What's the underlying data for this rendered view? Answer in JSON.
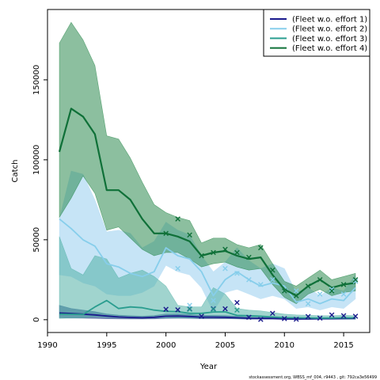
{
  "chart_data": {
    "type": "line",
    "title": "",
    "xlabel": "Year",
    "ylabel": "Catch",
    "xlim": [
      1990,
      2017.2
    ],
    "ylim": [
      -8000,
      194000
    ],
    "x_ticks": [
      1990,
      1995,
      2000,
      2005,
      2010,
      2015
    ],
    "y_ticks": [
      0,
      50000,
      100000,
      150000
    ],
    "legend_position": "top-right",
    "grid": false,
    "footnote": "stockassessment.org, WBSS_mf_004, r9443 , git: 792ca3e56499",
    "series": [
      {
        "name": "(Fleet w.o. effort 1)",
        "color": "#1a1a8c",
        "band_color": "#2a4a8a",
        "band_opacity": 0.65,
        "line_width": 1.8,
        "years": [
          1991,
          1992,
          1993,
          1994,
          1995,
          1996,
          1997,
          1998,
          1999,
          2000,
          2001,
          2002,
          2003,
          2004,
          2005,
          2006,
          2007,
          2008,
          2009,
          2010,
          2011,
          2012,
          2013,
          2014,
          2015,
          2016
        ],
        "estimate": [
          4200,
          3900,
          3500,
          3000,
          2300,
          1700,
          1400,
          1200,
          1500,
          2200,
          2300,
          2000,
          1600,
          1600,
          1500,
          1200,
          900,
          800,
          800,
          500,
          400,
          500,
          600,
          600,
          700,
          800
        ],
        "lower": [
          1200,
          1000,
          900,
          800,
          600,
          500,
          400,
          400,
          500,
          800,
          900,
          800,
          600,
          600,
          600,
          500,
          300,
          300,
          300,
          200,
          150,
          200,
          250,
          250,
          300,
          300
        ],
        "upper": [
          9000,
          7000,
          6000,
          5000,
          3600,
          2900,
          2500,
          2200,
          2600,
          3600,
          3700,
          3300,
          2700,
          2700,
          2600,
          2200,
          1700,
          1500,
          1500,
          1000,
          800,
          900,
          1100,
          1100,
          1300,
          1500
        ],
        "obs_years": [
          2000,
          2001,
          2002,
          2003,
          2004,
          2005,
          2006,
          2007,
          2008,
          2009,
          2010,
          2011,
          2012,
          2013,
          2014,
          2015,
          2016
        ],
        "observed": [
          6500,
          6200,
          6800,
          2200,
          6800,
          6800,
          10700,
          1500,
          200,
          4000,
          700,
          300,
          2000,
          1000,
          3000,
          2500,
          2200
        ]
      },
      {
        "name": "(Fleet w.o. effort 2)",
        "color": "#87ceeb",
        "band_color": "#bcdff5",
        "band_opacity": 0.85,
        "line_width": 1.8,
        "years": [
          1991,
          1992,
          1993,
          1994,
          1995,
          1996,
          1997,
          1998,
          1999,
          2000,
          2001,
          2002,
          2003,
          2004,
          2005,
          2006,
          2007,
          2008,
          2009,
          2010,
          2011,
          2012,
          2013,
          2014,
          2015,
          2016
        ],
        "estimate": [
          63000,
          57000,
          50000,
          46000,
          35000,
          33000,
          29000,
          27000,
          30000,
          45000,
          40000,
          38000,
          30000,
          15000,
          25000,
          30000,
          25000,
          21000,
          23000,
          21000,
          11000,
          13000,
          10000,
          13000,
          12000,
          20000
        ],
        "lower": [
          28000,
          27000,
          23000,
          21000,
          16000,
          15000,
          15000,
          17000,
          21000,
          34000,
          30000,
          28000,
          20000,
          5000,
          17000,
          19000,
          16000,
          13000,
          15000,
          13000,
          7000,
          8000,
          6000,
          8000,
          7000,
          13000
        ],
        "upper": [
          63000,
          93000,
          91000,
          75000,
          55000,
          56000,
          54000,
          45000,
          49000,
          61000,
          56000,
          53000,
          40000,
          30000,
          36000,
          45000,
          37000,
          32000,
          35000,
          32000,
          17000,
          20000,
          15000,
          20000,
          18000,
          28000
        ],
        "obs_years": [
          2001,
          2002,
          2004,
          2005,
          2006,
          2007,
          2008,
          2009,
          2010,
          2011,
          2012,
          2013,
          2014,
          2015,
          2016
        ],
        "observed": [
          32000,
          9000,
          12000,
          32000,
          29000,
          25000,
          22000,
          25000,
          18000,
          18000,
          10000,
          16000,
          19000,
          16000,
          24000
        ]
      },
      {
        "name": "(Fleet w.o. effort 3)",
        "color": "#2a9d8f",
        "band_color": "#52b0a6",
        "band_opacity": 0.55,
        "line_width": 1.8,
        "years": [
          1991,
          1992,
          1993,
          1994,
          1995,
          1996,
          1997,
          1998,
          1999,
          2000,
          2001,
          2002,
          2003,
          2004,
          2005,
          2006,
          2007,
          2008,
          2009,
          2010,
          2011,
          2012,
          2013,
          2014,
          2015,
          2016
        ],
        "estimate": [
          3500,
          3400,
          3300,
          8000,
          12000,
          7000,
          8000,
          7500,
          6000,
          5200,
          5000,
          4000,
          4000,
          4800,
          4900,
          2700,
          2500,
          2200,
          1700,
          1300,
          1200,
          1100,
          1000,
          1000,
          1200,
          1100
        ],
        "lower": [
          800,
          1000,
          1200,
          2000,
          1500,
          1300,
          1200,
          1200,
          1200,
          1300,
          1200,
          1000,
          1000,
          1200,
          1200,
          800,
          600,
          500,
          500,
          400,
          350,
          300,
          300,
          300,
          350,
          300
        ],
        "upper": [
          52000,
          32000,
          28000,
          40000,
          38000,
          26000,
          29000,
          31000,
          27000,
          21000,
          9000,
          8000,
          8000,
          20000,
          16000,
          7000,
          6000,
          5500,
          4500,
          3500,
          3000,
          2800,
          2500,
          2500,
          2800,
          2500
        ],
        "obs_years": [
          2002,
          2004,
          2006
        ],
        "observed": [
          6500,
          6500,
          6000
        ]
      },
      {
        "name": "(Fleet w.o. effort 4)",
        "color": "#0f7038",
        "band_color": "#1a8040",
        "band_opacity": 0.5,
        "line_width": 2.2,
        "years": [
          1991,
          1992,
          1993,
          1994,
          1995,
          1996,
          1997,
          1998,
          1999,
          2000,
          2001,
          2002,
          2003,
          2004,
          2005,
          2006,
          2007,
          2008,
          2009,
          2010,
          2011,
          2012,
          2013,
          2014,
          2015,
          2016
        ],
        "estimate": [
          105000,
          132000,
          127000,
          116000,
          81000,
          81000,
          75000,
          63000,
          54000,
          54000,
          52000,
          49000,
          40000,
          42000,
          43000,
          40000,
          38000,
          39000,
          28000,
          19000,
          15000,
          21000,
          25000,
          20000,
          22000,
          23000
        ],
        "lower": [
          64000,
          76000,
          90000,
          79000,
          56000,
          58000,
          51000,
          44000,
          40000,
          42000,
          42000,
          38000,
          33000,
          35000,
          36000,
          33000,
          31000,
          32000,
          22000,
          14000,
          10000,
          16000,
          19000,
          15000,
          17000,
          18000
        ],
        "upper": [
          173000,
          186000,
          175000,
          159000,
          115000,
          113000,
          101000,
          86000,
          72000,
          67000,
          64000,
          62000,
          48000,
          51000,
          51000,
          47000,
          45000,
          47000,
          35000,
          24000,
          21000,
          26000,
          31000,
          25000,
          27000,
          29000
        ],
        "obs_years": [
          2000,
          2001,
          2002,
          2003,
          2004,
          2005,
          2006,
          2007,
          2008,
          2009,
          2010,
          2011,
          2012,
          2013,
          2014,
          2015,
          2016
        ],
        "observed": [
          54000,
          63000,
          53000,
          40000,
          42000,
          44000,
          42000,
          39000,
          45000,
          31000,
          18000,
          15000,
          21000,
          25000,
          18000,
          22000,
          25000
        ]
      }
    ]
  }
}
